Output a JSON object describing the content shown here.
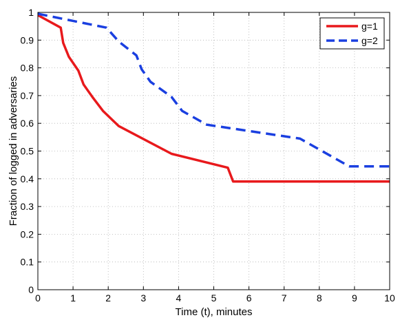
{
  "chart_data": {
    "type": "line",
    "title": "",
    "xlabel": "Time (t), minutes",
    "ylabel": "Fraction of logged in adversaries",
    "xlim": [
      0,
      10
    ],
    "ylim": [
      0,
      1
    ],
    "xticks": [
      0,
      1,
      2,
      3,
      4,
      5,
      6,
      7,
      8,
      9,
      10
    ],
    "yticks": [
      0,
      0.1,
      0.2,
      0.3,
      0.4,
      0.5,
      0.6,
      0.7,
      0.8,
      0.9,
      1
    ],
    "grid": true,
    "legend_position": "top-right",
    "series": [
      {
        "name": "g=1",
        "color": "#e8191c",
        "style": "solid",
        "x": [
          0,
          0.65,
          0.72,
          0.88,
          1.15,
          1.3,
          1.55,
          1.85,
          2.3,
          3.8,
          5.4,
          5.55,
          10
        ],
        "y": [
          0.99,
          0.945,
          0.89,
          0.84,
          0.79,
          0.74,
          0.695,
          0.645,
          0.59,
          0.49,
          0.44,
          0.39,
          0.39
        ]
      },
      {
        "name": "g=2",
        "color": "#1a3fe0",
        "style": "dashed",
        "x": [
          0,
          1.95,
          2.3,
          2.8,
          2.95,
          3.2,
          3.8,
          4.1,
          4.8,
          7.45,
          8.85,
          10
        ],
        "y": [
          0.995,
          0.945,
          0.895,
          0.845,
          0.795,
          0.75,
          0.695,
          0.645,
          0.595,
          0.545,
          0.445,
          0.445
        ]
      }
    ]
  }
}
